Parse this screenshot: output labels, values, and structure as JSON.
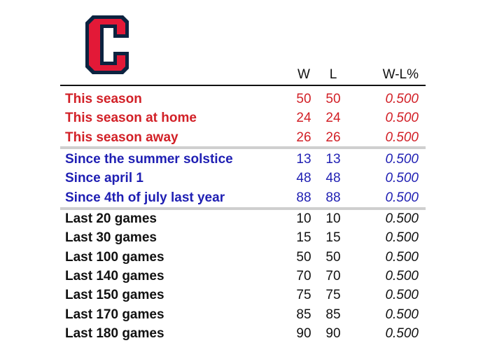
{
  "header": {
    "w": "W",
    "l": "L",
    "pct": "W-L%"
  },
  "colors": {
    "season": "#d22027",
    "period": "#1f1fb3",
    "recent": "#111111",
    "logo_red": "#e31937",
    "logo_navy": "#0c2340"
  },
  "logo": {
    "icon": "cleveland-c-logo",
    "letter": "C"
  },
  "groups": [
    {
      "key": "season",
      "rows": [
        {
          "label": "This season",
          "w": "50",
          "l": "50",
          "pct": "0.500"
        },
        {
          "label": "This season at home",
          "w": "24",
          "l": "24",
          "pct": "0.500"
        },
        {
          "label": "This season away",
          "w": "26",
          "l": "26",
          "pct": "0.500"
        }
      ]
    },
    {
      "key": "period",
      "rows": [
        {
          "label": "Since the summer solstice",
          "w": "13",
          "l": "13",
          "pct": "0.500"
        },
        {
          "label": "Since april 1",
          "w": "48",
          "l": "48",
          "pct": "0.500"
        },
        {
          "label": "Since 4th of july last year",
          "w": "88",
          "l": "88",
          "pct": "0.500"
        }
      ]
    },
    {
      "key": "recent",
      "rows": [
        {
          "label": "Last 20 games",
          "w": "10",
          "l": "10",
          "pct": "0.500"
        },
        {
          "label": "Last 30 games",
          "w": "15",
          "l": "15",
          "pct": "0.500"
        },
        {
          "label": "Last 100 games",
          "w": "50",
          "l": "50",
          "pct": "0.500"
        },
        {
          "label": "Last 140 games",
          "w": "70",
          "l": "70",
          "pct": "0.500"
        },
        {
          "label": "Last 150 games",
          "w": "75",
          "l": "75",
          "pct": "0.500"
        },
        {
          "label": "Last 170 games",
          "w": "85",
          "l": "85",
          "pct": "0.500"
        },
        {
          "label": "Last 180 games",
          "w": "90",
          "l": "90",
          "pct": "0.500"
        }
      ]
    }
  ]
}
